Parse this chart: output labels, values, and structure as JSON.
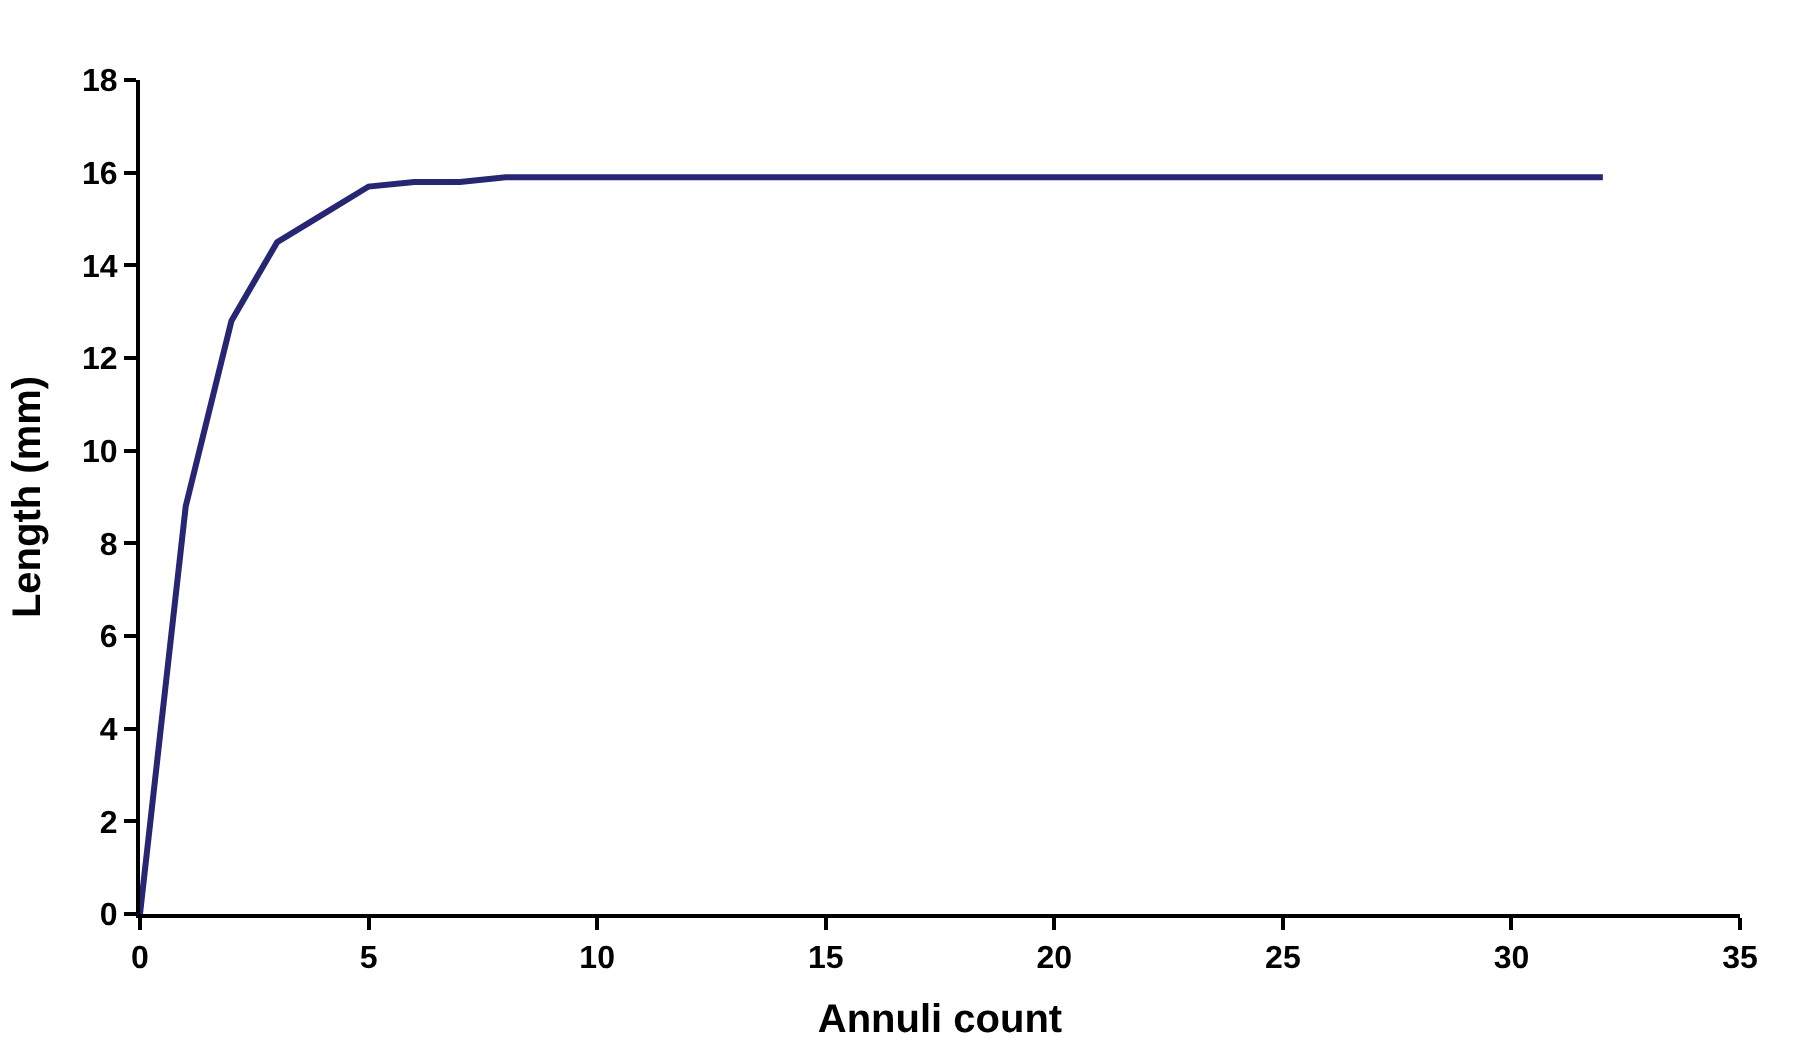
{
  "chart_data": {
    "type": "line",
    "xlabel": "Annuli count",
    "ylabel": "Length (mm)",
    "x": [
      0,
      1,
      2,
      3,
      4,
      5,
      6,
      7,
      8,
      32
    ],
    "series": [
      {
        "color": "#262673",
        "values": [
          0,
          8.8,
          12.8,
          14.5,
          15.1,
          15.7,
          15.8,
          15.8,
          15.9,
          15.9
        ]
      }
    ],
    "xlim": [
      0,
      35
    ],
    "xticks": [
      0,
      5,
      10,
      15,
      20,
      25,
      30,
      35
    ],
    "ylim": [
      0,
      18
    ],
    "yticks": [
      0,
      2,
      4,
      6,
      8,
      10,
      12,
      14,
      16,
      18
    ],
    "marker": "none",
    "line_style": "solid"
  }
}
